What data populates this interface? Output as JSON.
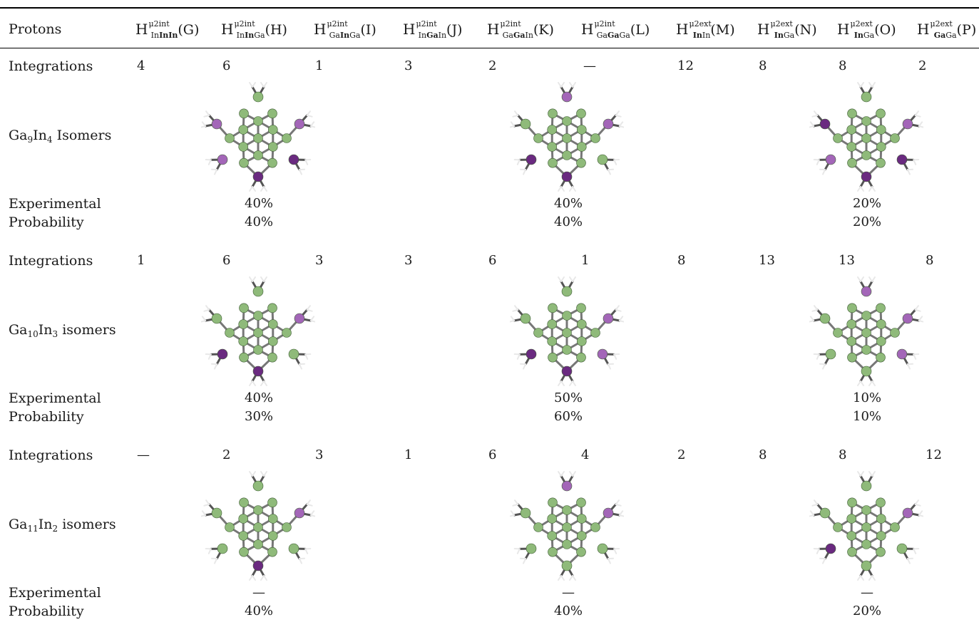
{
  "header": {
    "protons_label": "Protons",
    "columns": [
      {
        "id": "G",
        "sup": "μ2int",
        "pre": "",
        "bold": "InIn",
        "mid": "",
        "post": "",
        "letter": "(G)",
        "sub_prefix": "In"
      },
      {
        "id": "H",
        "sup": "μ2int",
        "sub_prefix": "In",
        "bold": "In",
        "post": "Ga",
        "letter": "(H)"
      },
      {
        "id": "I",
        "sup": "μ2int",
        "sub_prefix": "Ga",
        "bold": "In",
        "post": "Ga",
        "letter": "(I)"
      },
      {
        "id": "J",
        "sup": "μ2int",
        "sub_prefix": "In",
        "bold": "Ga",
        "post": "In",
        "letter": "(J)"
      },
      {
        "id": "K",
        "sup": "μ2int",
        "sub_prefix": "Ga",
        "bold": "Ga",
        "post": "In",
        "letter": "(K)"
      },
      {
        "id": "L",
        "sup": "μ2int",
        "sub_prefix": "Ga",
        "bold": "Ga",
        "post": "Ga",
        "letter": "(L)"
      },
      {
        "id": "M",
        "sup": "μ2ext",
        "sub_prefix": "",
        "bold": "In",
        "post": "In",
        "letter": "(M)"
      },
      {
        "id": "N",
        "sup": "μ2ext",
        "sub_prefix": "",
        "bold": "In",
        "post": "Ga",
        "letter": "(N)"
      },
      {
        "id": "O",
        "sup": "μ2ext",
        "sub_prefix": "",
        "bold": "In",
        "post": "Ga",
        "letter": "(O)"
      },
      {
        "id": "P",
        "sup": "μ2ext",
        "sub_prefix": "",
        "bold": "Ga",
        "post": "Ga",
        "letter": "(P)"
      }
    ]
  },
  "sections": [
    {
      "integrations_label": "Integrations",
      "integrations": [
        "4",
        "6",
        "1",
        "3",
        "2",
        "—",
        "12",
        "8",
        "8",
        "2"
      ],
      "isomer_label": {
        "a": "Ga",
        "an": "9",
        "b": "In",
        "bn": "4",
        "rest": " Isomers"
      },
      "experimental_label": "Experimental",
      "probability_label": "Probability",
      "experimental": [
        "40%",
        "40%",
        "20%"
      ],
      "probability": [
        "40%",
        "40%",
        "20%"
      ]
    },
    {
      "integrations_label": "Integrations",
      "integrations": [
        "1",
        "6",
        "3",
        "3",
        "6",
        "1",
        "8",
        "13",
        "13",
        "8"
      ],
      "isomer_label": {
        "a": "Ga",
        "an": "10",
        "b": "In",
        "bn": "3",
        "rest": " isomers"
      },
      "experimental_label": "Experimental",
      "probability_label": "Probability",
      "experimental": [
        "40%",
        "50%",
        "10%"
      ],
      "probability": [
        "30%",
        "60%",
        "10%"
      ]
    },
    {
      "integrations_label": "Integrations",
      "integrations": [
        "—",
        "2",
        "3",
        "1",
        "6",
        "4",
        "2",
        "8",
        "8",
        "12"
      ],
      "isomer_label": {
        "a": "Ga",
        "an": "11",
        "b": "In",
        "bn": "2",
        "rest": " isomers"
      },
      "experimental_label": "Experimental",
      "probability_label": "Probability",
      "experimental": [
        "—",
        "—",
        "—"
      ],
      "probability": [
        "40%",
        "40%",
        "20%"
      ]
    }
  ],
  "colors": {
    "ga": "#8fba7a",
    "in_light": "#a366b8",
    "in_dark": "#6a2a80",
    "bond": "#777777",
    "h": "#e8e8e8"
  },
  "molecules": [
    [
      "in_light",
      "in_light",
      "in_dark",
      "in_dark",
      "in_light",
      "ga"
    ],
    [
      "ga",
      "in_light",
      "ga",
      "in_dark",
      "in_dark",
      "in_light"
    ],
    [
      "in_dark",
      "in_light",
      "in_dark",
      "in_dark",
      "in_light",
      "ga"
    ],
    [
      "ga",
      "in_light",
      "ga",
      "in_dark",
      "in_dark",
      "ga"
    ],
    [
      "ga",
      "in_light",
      "in_light",
      "in_dark",
      "in_dark",
      "ga"
    ],
    [
      "ga",
      "in_light",
      "in_light",
      "ga",
      "ga",
      "in_light"
    ],
    [
      "ga",
      "in_light",
      "ga",
      "in_dark",
      "ga",
      "ga"
    ],
    [
      "ga",
      "in_light",
      "ga",
      "ga",
      "ga",
      "in_light"
    ],
    [
      "ga",
      "in_light",
      "ga",
      "ga",
      "in_dark",
      "ga"
    ]
  ]
}
